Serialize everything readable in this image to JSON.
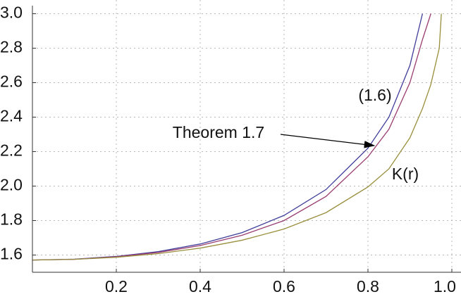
{
  "chart_data": {
    "type": "line",
    "x": [
      0,
      0.1,
      0.2,
      0.3,
      0.4,
      0.5,
      0.6,
      0.7,
      0.8,
      0.85,
      0.9,
      0.93,
      0.95,
      0.97,
      0.975
    ],
    "series": [
      {
        "color": "#3f3d99",
        "values": [
          1.571,
          1.576,
          1.592,
          1.62,
          1.664,
          1.73,
          1.83,
          1.98,
          2.22,
          2.4,
          2.7,
          3.0,
          null,
          null,
          null
        ]
      },
      {
        "color": "#993d71",
        "values": [
          1.571,
          1.575,
          1.59,
          1.615,
          1.655,
          1.715,
          1.8,
          1.94,
          2.17,
          2.33,
          2.6,
          2.85,
          3.0,
          null,
          null
        ]
      },
      {
        "color": "#998f3d",
        "values": [
          1.571,
          1.575,
          1.587,
          1.608,
          1.64,
          1.686,
          1.751,
          1.846,
          1.995,
          2.1,
          2.28,
          2.45,
          2.59,
          2.8,
          3.0
        ]
      }
    ],
    "annotations": [
      "(1.6)",
      "Theorem 1.7",
      "K(r)"
    ],
    "xlim": [
      0,
      1
    ],
    "ylim": [
      1.5,
      3.0
    ],
    "xticks": [
      0.2,
      0.4,
      0.6,
      0.8,
      {
        "value": 1.0,
        "label": "1.0"
      }
    ],
    "yticks": [
      1.6,
      1.8,
      {
        "value": 2.0,
        "label": "2.0"
      },
      2.2,
      2.4,
      2.6,
      2.8,
      {
        "value": 3.0,
        "label": "3.0"
      }
    ],
    "grid": true
  }
}
